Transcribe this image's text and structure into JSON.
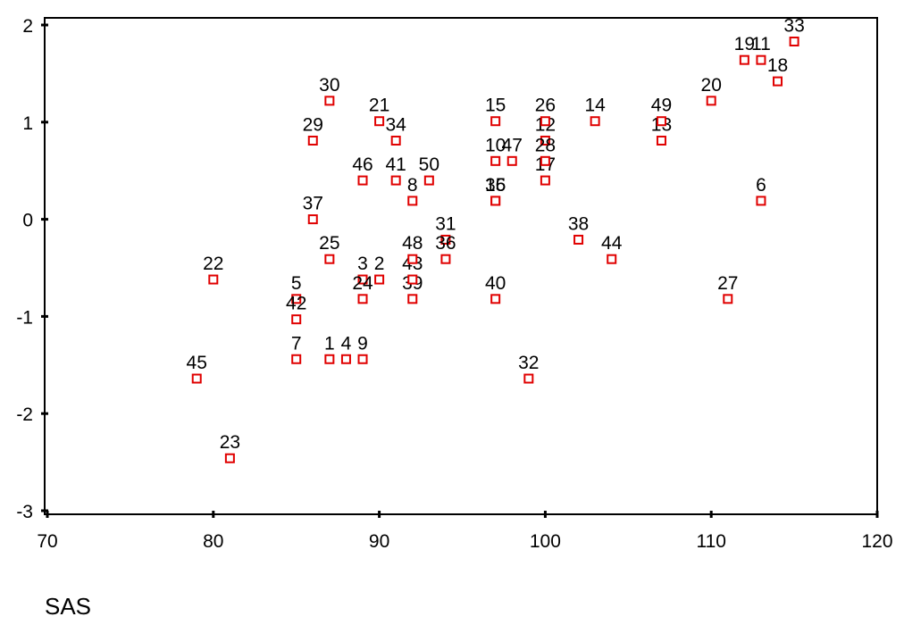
{
  "chart_data": {
    "type": "scatter",
    "title": "",
    "xlabel": "SAS",
    "ylabel": "",
    "xlim": [
      70,
      120
    ],
    "ylim": [
      -3,
      2
    ],
    "xticks": [
      70,
      80,
      90,
      100,
      110,
      120
    ],
    "yticks": [
      -3,
      -2,
      -1,
      0,
      1,
      2
    ],
    "grid": false,
    "legend": "none",
    "marker_color": "#e00000",
    "points": [
      {
        "label": "1",
        "x": 87,
        "y": -1.44
      },
      {
        "label": "2",
        "x": 90,
        "y": -0.62
      },
      {
        "label": "3",
        "x": 89,
        "y": -0.62
      },
      {
        "label": "4",
        "x": 88,
        "y": -1.44
      },
      {
        "label": "5",
        "x": 85,
        "y": -0.82
      },
      {
        "label": "6",
        "x": 113,
        "y": 0.19
      },
      {
        "label": "7",
        "x": 85,
        "y": -1.44
      },
      {
        "label": "8",
        "x": 92,
        "y": 0.19
      },
      {
        "label": "9",
        "x": 89,
        "y": -1.44
      },
      {
        "label": "10",
        "x": 97,
        "y": 0.6
      },
      {
        "label": "11",
        "x": 113,
        "y": 1.64
      },
      {
        "label": "12",
        "x": 100,
        "y": 0.81
      },
      {
        "label": "13",
        "x": 107,
        "y": 0.81
      },
      {
        "label": "14",
        "x": 103,
        "y": 1.01
      },
      {
        "label": "15",
        "x": 97,
        "y": 1.01
      },
      {
        "label": "16",
        "x": 97,
        "y": 0.19
      },
      {
        "label": "17",
        "x": 100,
        "y": 0.4
      },
      {
        "label": "18",
        "x": 114,
        "y": 1.42
      },
      {
        "label": "19",
        "x": 112,
        "y": 1.64
      },
      {
        "label": "20",
        "x": 110,
        "y": 1.22
      },
      {
        "label": "21",
        "x": 90,
        "y": 1.01
      },
      {
        "label": "22",
        "x": 80,
        "y": -0.62
      },
      {
        "label": "23",
        "x": 81,
        "y": -2.46
      },
      {
        "label": "24",
        "x": 89,
        "y": -0.82
      },
      {
        "label": "25",
        "x": 87,
        "y": -0.41
      },
      {
        "label": "26",
        "x": 100,
        "y": 1.01
      },
      {
        "label": "27",
        "x": 111,
        "y": -0.82
      },
      {
        "label": "28",
        "x": 100,
        "y": 0.6
      },
      {
        "label": "29",
        "x": 86,
        "y": 0.81
      },
      {
        "label": "30",
        "x": 87,
        "y": 1.22
      },
      {
        "label": "31",
        "x": 94,
        "y": -0.21
      },
      {
        "label": "32",
        "x": 99,
        "y": -1.64
      },
      {
        "label": "33",
        "x": 115,
        "y": 1.83
      },
      {
        "label": "34",
        "x": 91,
        "y": 0.81
      },
      {
        "label": "35",
        "x": 97,
        "y": 0.19
      },
      {
        "label": "36",
        "x": 94,
        "y": -0.41
      },
      {
        "label": "37",
        "x": 86,
        "y": 0.0
      },
      {
        "label": "38",
        "x": 102,
        "y": -0.21
      },
      {
        "label": "39",
        "x": 92,
        "y": -0.82
      },
      {
        "label": "40",
        "x": 97,
        "y": -0.82
      },
      {
        "label": "41",
        "x": 91,
        "y": 0.4
      },
      {
        "label": "42",
        "x": 85,
        "y": -1.03
      },
      {
        "label": "43",
        "x": 92,
        "y": -0.62
      },
      {
        "label": "44",
        "x": 104,
        "y": -0.41
      },
      {
        "label": "45",
        "x": 79,
        "y": -1.64
      },
      {
        "label": "46",
        "x": 89,
        "y": 0.4
      },
      {
        "label": "47",
        "x": 98,
        "y": 0.6
      },
      {
        "label": "48",
        "x": 92,
        "y": -0.41
      },
      {
        "label": "49",
        "x": 107,
        "y": 1.01
      },
      {
        "label": "50",
        "x": 93,
        "y": 0.4
      }
    ]
  }
}
